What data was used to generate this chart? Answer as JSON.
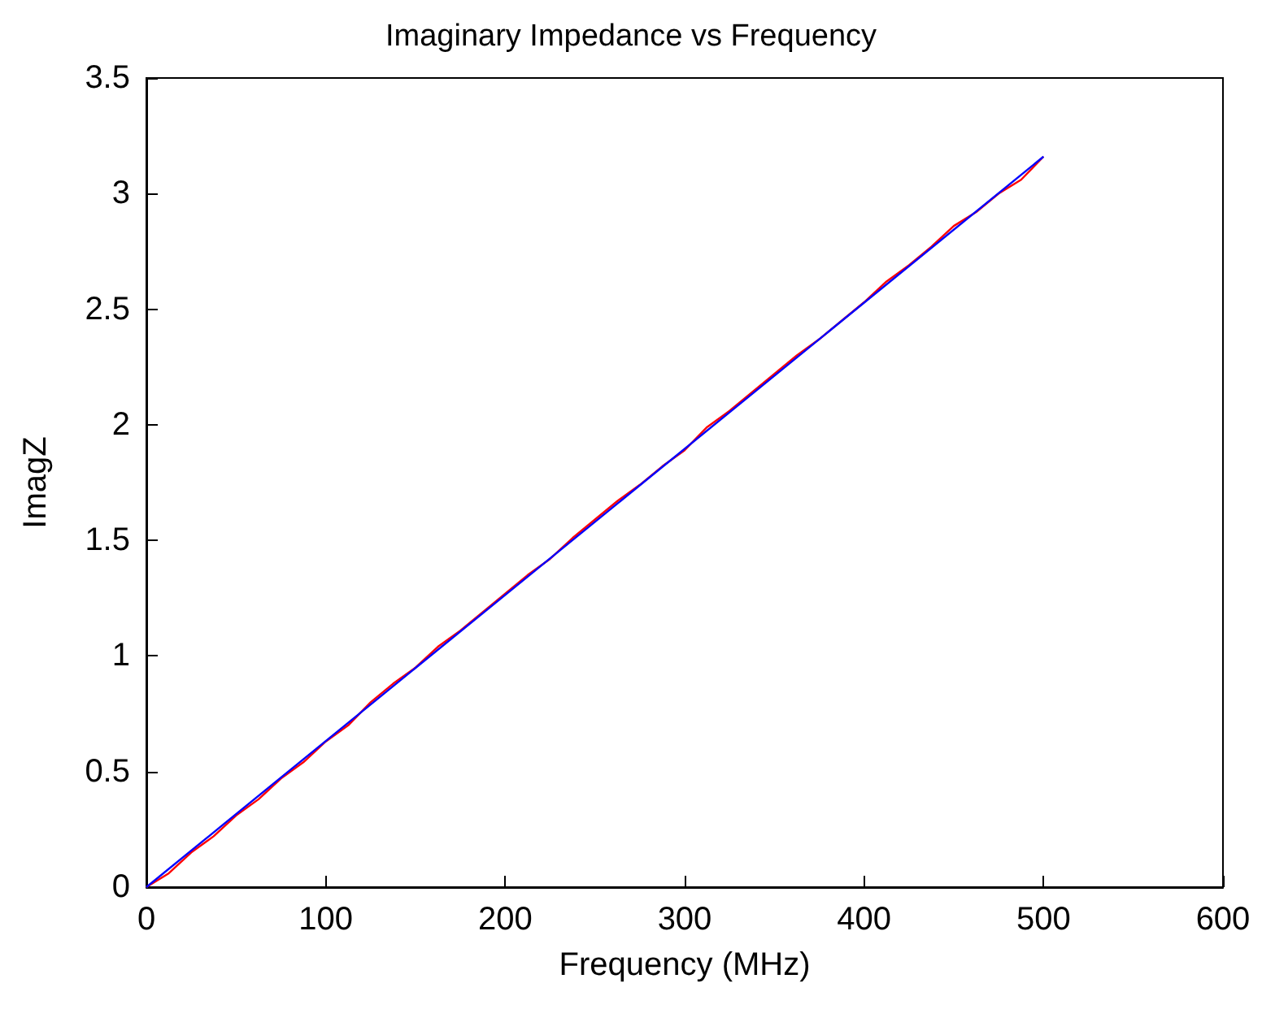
{
  "chart_data": {
    "type": "line",
    "title": "Imaginary Impedance vs Frequency",
    "xlabel": "Frequency (MHz)",
    "ylabel": "ImagZ",
    "xlim": [
      0,
      600
    ],
    "xticks": [
      0,
      100,
      200,
      300,
      400,
      500,
      600
    ],
    "ylim": [
      0,
      3.5
    ],
    "yticks": [
      0,
      0.5,
      1,
      1.5,
      2,
      2.5,
      3,
      3.5
    ],
    "grid": false,
    "marker": "none",
    "line_style": "solid",
    "series": [
      {
        "color": "#ff0000",
        "x": [
          0,
          12.5,
          25,
          37.5,
          50,
          62.5,
          75,
          87.5,
          100,
          112.5,
          125,
          137.5,
          150,
          162.5,
          175,
          187.5,
          200,
          212.5,
          225,
          237.5,
          250,
          262.5,
          275,
          287.5,
          300,
          312.5,
          325,
          337.5,
          350,
          362.5,
          375,
          387.5,
          400,
          412.5,
          425,
          437.5,
          450,
          462.5,
          475,
          487.5,
          500
        ],
        "values": [
          0,
          0.06,
          0.15,
          0.22,
          0.31,
          0.38,
          0.47,
          0.54,
          0.63,
          0.7,
          0.8,
          0.88,
          0.95,
          1.04,
          1.11,
          1.19,
          1.27,
          1.35,
          1.42,
          1.51,
          1.59,
          1.67,
          1.74,
          1.82,
          1.89,
          1.99,
          2.06,
          2.14,
          2.22,
          2.3,
          2.37,
          2.45,
          2.53,
          2.62,
          2.69,
          2.77,
          2.86,
          2.92,
          3.0,
          3.06,
          3.16
        ]
      },
      {
        "color": "#0000ff",
        "x": [
          0,
          500
        ],
        "values": [
          0,
          3.16
        ]
      }
    ]
  }
}
